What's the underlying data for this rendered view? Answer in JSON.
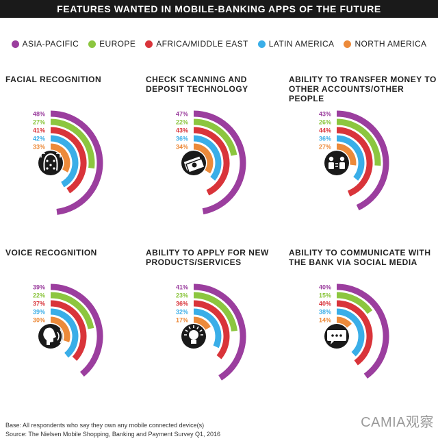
{
  "title": "FEATURES WANTED IN MOBILE-BANKING APPS OF THE FUTURE",
  "legend": [
    {
      "name": "ASIA-PACIFIC",
      "color": "#9b3e9e"
    },
    {
      "name": "EUROPE",
      "color": "#8cc63f"
    },
    {
      "name": "AFRICA/MIDDLE EAST",
      "color": "#d9343a"
    },
    {
      "name": "LATIN AMERICA",
      "color": "#3aaee8"
    },
    {
      "name": "NORTH AMERICA",
      "color": "#ec8a3a"
    }
  ],
  "chart_data": {
    "type": "radial-bar",
    "unit": "%",
    "series": [
      "ASIA-PACIFIC",
      "EUROPE",
      "AFRICA/MIDDLE EAST",
      "LATIN AMERICA",
      "NORTH AMERICA"
    ],
    "panels": [
      {
        "title": "FACIAL RECOGNITION",
        "icon": "face-scan-icon",
        "values": [
          48,
          27,
          41,
          42,
          33
        ]
      },
      {
        "title": "CHECK SCANNING AND\nDEPOSIT TECHNOLOGY",
        "icon": "money-icon",
        "values": [
          47,
          22,
          43,
          36,
          34
        ]
      },
      {
        "title": "ABILITY TO TRANSFER MONEY TO\nOTHER ACCOUNTS/OTHER PEOPLE",
        "icon": "transfer-people-icon",
        "values": [
          43,
          26,
          44,
          36,
          27
        ]
      },
      {
        "title": "VOICE RECOGNITION",
        "icon": "voice-icon",
        "values": [
          39,
          22,
          37,
          39,
          30
        ]
      },
      {
        "title": "ABILITY TO APPLY FOR NEW\nPRODUCTS/SERVICES",
        "icon": "lightbulb-icon",
        "values": [
          41,
          23,
          36,
          32,
          17
        ]
      },
      {
        "title": "ABILITY TO COMMUNICATE WITH\nTHE BANK VIA SOCIAL MEDIA",
        "icon": "chat-bubble-icon",
        "values": [
          40,
          15,
          40,
          38,
          14
        ]
      }
    ]
  },
  "footer": {
    "base": "Base: All respondents who say they own any mobile connected device(s)",
    "source": "Source: The Nielsen Mobile Shopping, Banking and Payment Survey Q1, 2016"
  },
  "watermark": "CAMIA观察"
}
